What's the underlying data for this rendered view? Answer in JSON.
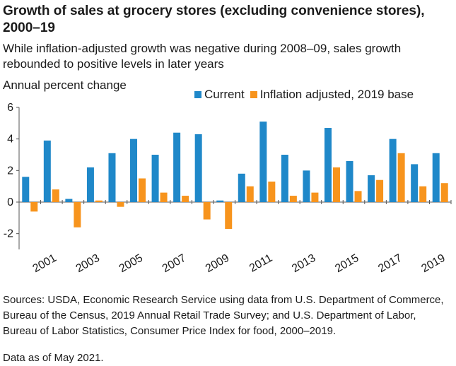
{
  "title": "Growth of sales at grocery stores (excluding convenience stores), 2000–19",
  "subtitle": "While inflation-adjusted growth was negative during 2008–09, sales growth rebounded to positive levels in later years",
  "footer": {
    "sources": "Sources: USDA, Economic Research Service using data from U.S. Department of Commerce, Bureau of the Census, 2019 Annual Retail Trade Survey; and U.S. Department of Labor, Bureau of Labor Statistics, Consumer Price Index for food, 2000–2019.",
    "as_of": "Data as of May 2021."
  },
  "colors": {
    "current": "#1f88c9",
    "inflation": "#f7941d",
    "axis": "#555555"
  },
  "chart_data": {
    "type": "bar",
    "ylabel": "Annual percent change",
    "ylim": [
      -3,
      6
    ],
    "yticks": [
      6,
      4,
      2,
      0,
      -2
    ],
    "ytick_labels": [
      "6",
      "4",
      "2",
      "0",
      "-2"
    ],
    "grid": false,
    "legend_position": "top",
    "categories": [
      "2000",
      "2001",
      "2002",
      "2003",
      "2004",
      "2005",
      "2006",
      "2007",
      "2008",
      "2009",
      "2010",
      "2011",
      "2012",
      "2013",
      "2014",
      "2015",
      "2016",
      "2017",
      "2018",
      "2019"
    ],
    "xtick_labels": [
      "2001",
      "2003",
      "2005",
      "2007",
      "2009",
      "2011",
      "2013",
      "2015",
      "2017",
      "2019"
    ],
    "series": [
      {
        "name": "Current",
        "values": [
          1.6,
          3.9,
          0.2,
          2.2,
          3.1,
          4.0,
          3.0,
          4.4,
          4.3,
          0.1,
          1.8,
          5.1,
          3.0,
          2.0,
          4.7,
          2.6,
          1.7,
          4.0,
          2.4,
          3.1
        ]
      },
      {
        "name": "Inflation adjusted, 2019 base",
        "values": [
          -0.6,
          0.8,
          -1.6,
          0.1,
          -0.3,
          1.5,
          0.6,
          0.4,
          -1.1,
          -1.7,
          1.0,
          1.3,
          0.4,
          0.6,
          2.2,
          0.7,
          1.4,
          3.1,
          1.0,
          1.2
        ]
      }
    ]
  }
}
